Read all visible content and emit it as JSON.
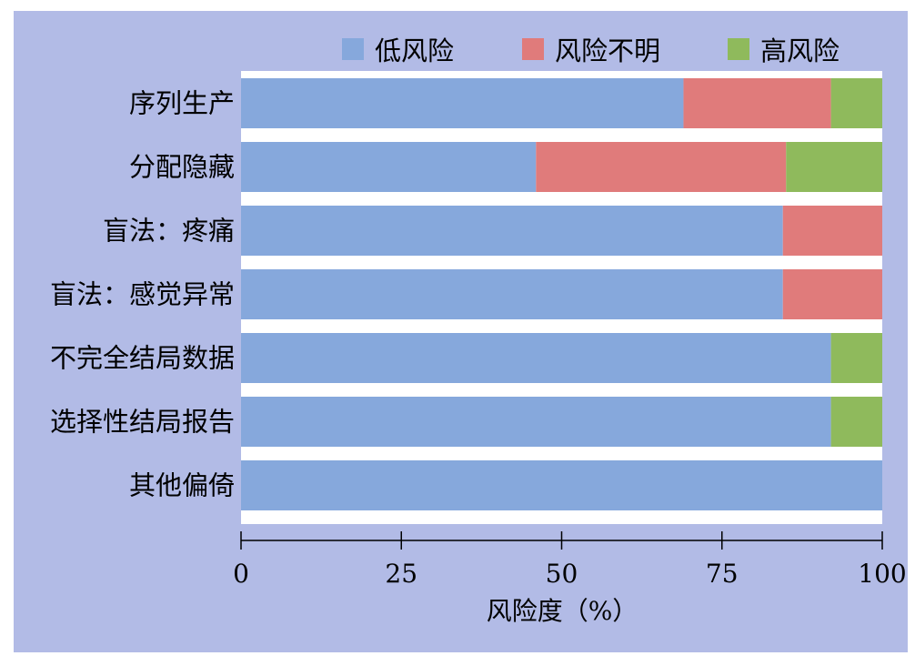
{
  "chart_data": {
    "type": "bar",
    "orientation": "horizontal",
    "stacked": true,
    "categories": [
      "序列生产",
      "分配隐藏",
      "盲法：疼痛",
      "盲法：感觉异常",
      "不完全结局数据",
      "选择性结局报告",
      "其他偏倚"
    ],
    "series": [
      {
        "name": "低风险",
        "color": "#86a8dc",
        "values": [
          69,
          46,
          84.5,
          84.5,
          92,
          92,
          100
        ]
      },
      {
        "name": "风险不明",
        "color": "#e07b7b",
        "values": [
          23,
          39,
          15.5,
          15.5,
          0,
          0,
          0
        ]
      },
      {
        "name": "高风险",
        "color": "#8fba5c",
        "values": [
          8,
          15,
          0,
          0,
          8,
          8,
          0
        ]
      }
    ],
    "xlabel": "风险度（%）",
    "xlim": [
      0,
      100
    ],
    "xticks": [
      "0",
      "25",
      "50",
      "75",
      "100"
    ],
    "legend_position": "top-right",
    "grid": false,
    "background_color": "#b2bbe6",
    "separator_color": "#ffffff"
  }
}
